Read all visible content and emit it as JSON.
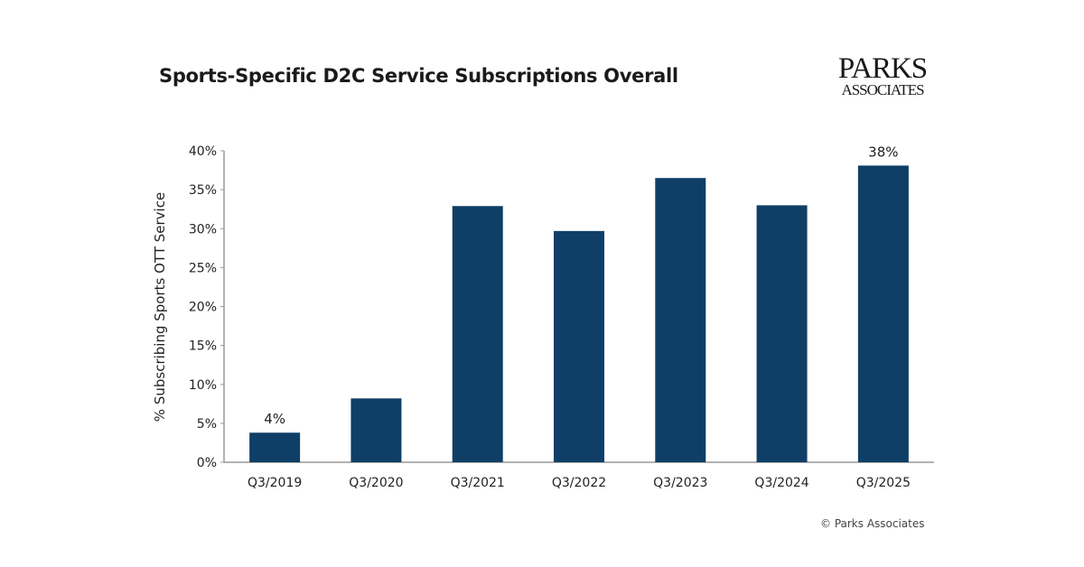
{
  "logo_text": "PARKS ASSOCIATES",
  "credit": "© Parks Associates",
  "chart_data": {
    "type": "bar",
    "title": "Sports-Specific D2C Service Subscriptions Overall",
    "xlabel": "",
    "ylabel": "% Subscribing Sports OTT Service",
    "categories": [
      "Q3/2019",
      "Q3/2020",
      "Q3/2021",
      "Q3/2022",
      "Q3/2023",
      "Q3/2024",
      "Q3/2025"
    ],
    "values": [
      3.8,
      8.2,
      32.9,
      29.7,
      36.5,
      33.0,
      38.1
    ],
    "data_labels": {
      "0": "4%",
      "6": "38%"
    },
    "ylim": [
      0,
      40
    ],
    "yticks": [
      "0%",
      "5%",
      "10%",
      "15%",
      "20%",
      "25%",
      "30%",
      "35%",
      "40%"
    ],
    "grid": false,
    "bar_color": "#0f3f66"
  }
}
